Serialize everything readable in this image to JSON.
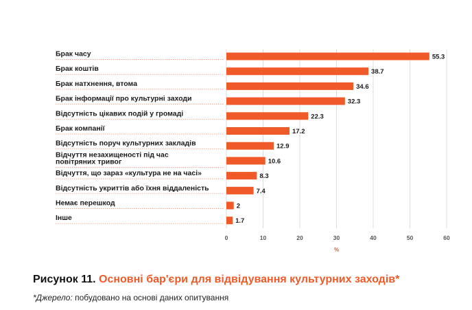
{
  "figure": {
    "label": "Рисунок 11.",
    "title": "Основні бар'єри для відвідування культурних заходів*",
    "source_label": "*Джерело:",
    "source_text": " побудовано на основі даних опитування"
  },
  "colors": {
    "bar": "#f05a28",
    "grid": "#dcdcdc",
    "leader": "#f05a28"
  },
  "chart_data": {
    "type": "bar",
    "orientation": "horizontal",
    "title": "Основні бар'єри для відвідування культурних заходів*",
    "xlabel": "%",
    "ylabel": "",
    "xlim": [
      0,
      60
    ],
    "xticks": [
      0,
      10,
      20,
      30,
      40,
      50,
      60
    ],
    "grid": true,
    "categories": [
      [
        "Брак часу"
      ],
      [
        "Брак коштів"
      ],
      [
        "Брак натхнення, втома"
      ],
      [
        "Брак інформації про культурні заходи"
      ],
      [
        "Відсутність цікавих подій у громаді"
      ],
      [
        "Брак компанії"
      ],
      [
        "Відсутність поруч культурних закладів"
      ],
      [
        "Відчуття незахищеності під час",
        "повітряних тривог"
      ],
      [
        "Відчуття, що зараз «культура не на часі»"
      ],
      [
        "Відсутність укриттів або їхня віддаленість"
      ],
      [
        "Немає перешкод"
      ],
      [
        "Інше"
      ]
    ],
    "values": [
      55.3,
      38.7,
      34.6,
      32.3,
      22.3,
      17.2,
      12.9,
      10.6,
      8.3,
      7.4,
      2,
      1.7
    ]
  }
}
